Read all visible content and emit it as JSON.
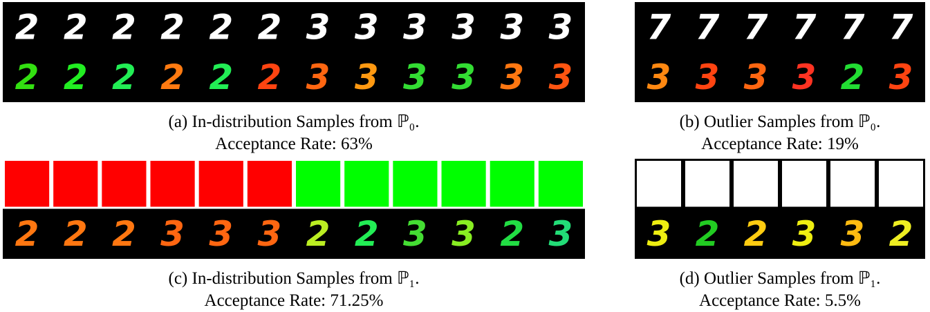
{
  "panels": [
    {
      "image_rows": [
        {
          "digits": [
            "2",
            "2",
            "2",
            "2",
            "2",
            "2",
            "3",
            "3",
            "3",
            "3",
            "3",
            "3"
          ],
          "colors": [
            "#ffffff",
            "#ffffff",
            "#ffffff",
            "#ffffff",
            "#ffffff",
            "#ffffff",
            "#ffffff",
            "#ffffff",
            "#ffffff",
            "#ffffff",
            "#ffffff",
            "#ffffff"
          ]
        },
        {
          "digits": [
            "2",
            "2",
            "2",
            "2",
            "2",
            "2",
            "3",
            "3",
            "3",
            "3",
            "3",
            "3"
          ],
          "colors": [
            "#33e011",
            "#22ee22",
            "#22ee55",
            "#ff7a11",
            "#22ee55",
            "#ff4411",
            "#ff6611",
            "#ff9911",
            "#33dd33",
            "#33dd33",
            "#ff7711",
            "#ff5511"
          ]
        }
      ],
      "caption": "(a) In-distribution Samples from ℙ₀.",
      "rate": "Acceptance Rate: 63%"
    },
    {
      "image_rows": [
        {
          "digits": [
            "7",
            "7",
            "7",
            "7",
            "7",
            "7"
          ],
          "colors": [
            "#ffffff",
            "#ffffff",
            "#ffffff",
            "#ffffff",
            "#ffffff",
            "#ffffff"
          ]
        },
        {
          "digits": [
            "3",
            "3",
            "3",
            "3",
            "2",
            "3"
          ],
          "colors": [
            "#ff8811",
            "#ff4411",
            "#ff6611",
            "#ff3322",
            "#22dd33",
            "#ff4411"
          ]
        }
      ],
      "caption": "(b) Outlier Samples from ℙ₀.",
      "rate": "Acceptance Rate: 19%"
    },
    {
      "image_rows": [
        {
          "squares": [
            "#ff0000",
            "#ff0000",
            "#ff0000",
            "#ff0000",
            "#ff0000",
            "#ff0000",
            "#00ff00",
            "#00ff00",
            "#00ff00",
            "#00ff00",
            "#00ff00",
            "#00ff00"
          ]
        },
        {
          "digits": [
            "2",
            "2",
            "2",
            "3",
            "3",
            "3",
            "2",
            "2",
            "3",
            "3",
            "2",
            "3"
          ],
          "colors": [
            "#ff7711",
            "#ff7711",
            "#ff7711",
            "#ff6611",
            "#ff6611",
            "#ff6611",
            "#bbee22",
            "#22ee55",
            "#44dd33",
            "#88ee22",
            "#22dd44",
            "#22dd77"
          ]
        }
      ],
      "caption": "(c) In-distribution Samples from ℙ₁.",
      "rate": "Acceptance Rate: 71.25%"
    },
    {
      "image_rows": [
        {
          "squares": [
            "#ffffff",
            "#ffffff",
            "#ffffff",
            "#ffffff",
            "#ffffff",
            "#ffffff"
          ]
        },
        {
          "digits": [
            "3",
            "2",
            "2",
            "3",
            "3",
            "2"
          ],
          "colors": [
            "#eeee11",
            "#22cc22",
            "#ffcc11",
            "#eeee11",
            "#ffbb11",
            "#eeee22"
          ]
        }
      ],
      "caption": "(d) Outlier Samples from ℙ₁.",
      "rate": "Acceptance Rate: 5.5%"
    }
  ]
}
